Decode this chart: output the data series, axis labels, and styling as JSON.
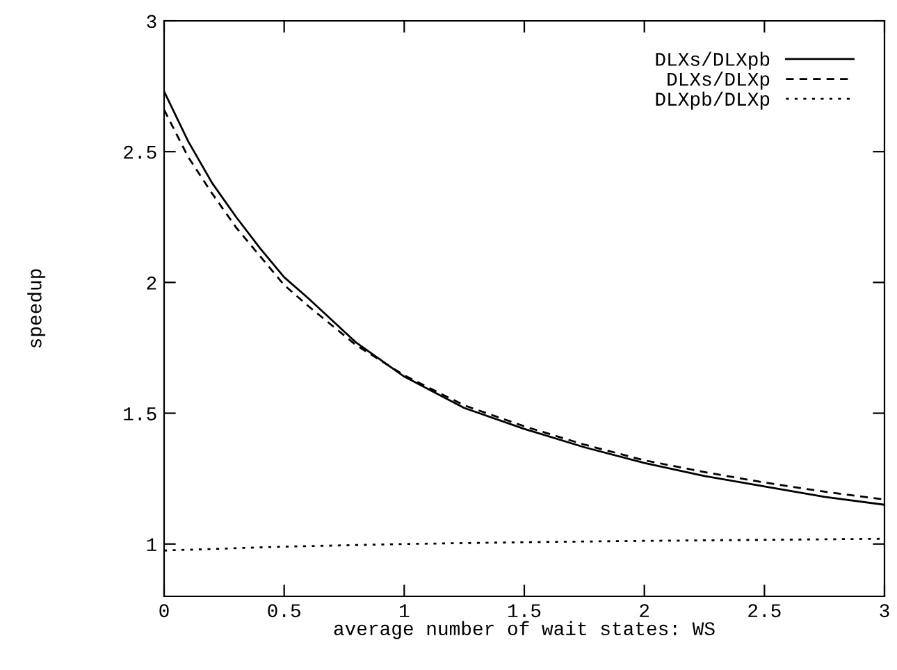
{
  "chart_data": {
    "type": "line",
    "xlabel": "average number of wait states: WS",
    "ylabel": "speedup",
    "xlim": [
      0,
      3
    ],
    "ylim": [
      0.8,
      3
    ],
    "xticks": [
      0,
      0.5,
      1,
      1.5,
      2,
      2.5,
      3
    ],
    "yticks": [
      1,
      1.5,
      2,
      2.5,
      3
    ],
    "legend": "top right",
    "grid": false,
    "series": [
      {
        "name": "DLXs/DLXpb",
        "color": "#000000",
        "line_style": "solid",
        "x": [
          0,
          0.1,
          0.2,
          0.3,
          0.4,
          0.5,
          0.6,
          0.8,
          1,
          1.25,
          1.5,
          1.75,
          2,
          2.25,
          2.5,
          2.75,
          3
        ],
        "values": [
          2.73,
          2.54,
          2.38,
          2.25,
          2.13,
          2.02,
          1.94,
          1.77,
          1.64,
          1.52,
          1.44,
          1.37,
          1.31,
          1.26,
          1.22,
          1.18,
          1.15
        ]
      },
      {
        "name": "DLXs/DLXp",
        "color": "#000000",
        "line_style": "dashed",
        "x": [
          0,
          0.1,
          0.2,
          0.3,
          0.4,
          0.5,
          0.6,
          0.8,
          1,
          1.25,
          1.5,
          1.75,
          2,
          2.25,
          2.5,
          2.75,
          3
        ],
        "values": [
          2.66,
          2.48,
          2.34,
          2.21,
          2.1,
          1.99,
          1.91,
          1.76,
          1.645,
          1.53,
          1.45,
          1.38,
          1.32,
          1.275,
          1.235,
          1.2,
          1.17
        ]
      },
      {
        "name": "DLXpb/DLXp",
        "color": "#000000",
        "line_style": "dotted",
        "x": [
          0,
          0.5,
          1,
          1.5,
          2,
          2.5,
          3
        ],
        "values": [
          0.975,
          0.99,
          1.0,
          1.007,
          1.012,
          1.016,
          1.02
        ]
      }
    ]
  }
}
